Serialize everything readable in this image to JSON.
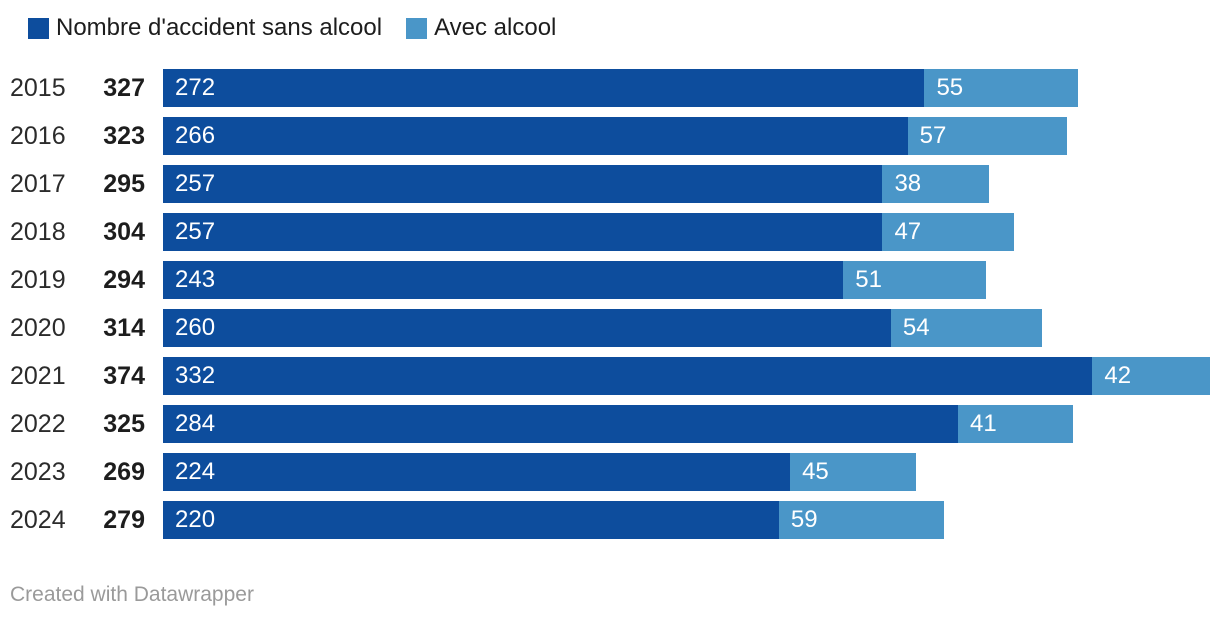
{
  "legend": [
    {
      "label": "Nombre d'accident sans alcool",
      "color": "#0d4d9d"
    },
    {
      "label": "Avec alcool",
      "color": "#4a96c8"
    }
  ],
  "chart_data": {
    "type": "bar",
    "subtype": "horizontal-stacked",
    "categories": [
      "2015",
      "2016",
      "2017",
      "2018",
      "2019",
      "2020",
      "2021",
      "2022",
      "2023",
      "2024"
    ],
    "series": [
      {
        "name": "Nombre d'accident sans alcool",
        "color": "#0d4d9d",
        "values": [
          272,
          266,
          257,
          257,
          243,
          260,
          332,
          284,
          224,
          220
        ]
      },
      {
        "name": "Avec alcool",
        "color": "#4a96c8",
        "values": [
          55,
          57,
          38,
          47,
          51,
          54,
          42,
          41,
          45,
          59
        ]
      }
    ],
    "totals": [
      327,
      323,
      295,
      304,
      294,
      314,
      374,
      325,
      269,
      279
    ],
    "xlim": [
      0,
      374
    ],
    "value_labels": "inside-start",
    "legend_position": "top-left",
    "grid": false,
    "axes_visible": false
  },
  "footer": {
    "attribution": "Created with Datawrapper"
  }
}
